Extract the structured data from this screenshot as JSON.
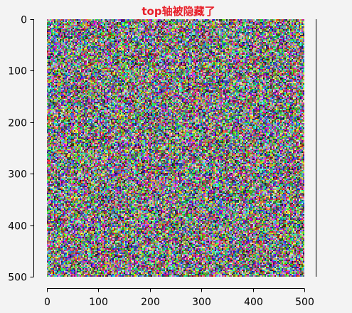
{
  "chart_data": {
    "type": "heatmap",
    "title": "top轴被隐藏了",
    "title_color": "#e8202a",
    "image": {
      "content": "random RGB noise",
      "width": 500,
      "height": 500
    },
    "xlim": [
      0,
      500
    ],
    "ylim": [
      500,
      0
    ],
    "x_ticks": [
      0,
      100,
      200,
      300,
      400,
      500
    ],
    "y_ticks": [
      0,
      100,
      200,
      300,
      400,
      500
    ],
    "x_tick_labels": [
      "0",
      "100",
      "200",
      "300",
      "400",
      "500"
    ],
    "y_tick_labels": [
      "0",
      "100",
      "200",
      "300",
      "400",
      "500"
    ],
    "visible_spines": [
      "left",
      "bottom",
      "right"
    ],
    "hidden_spines": [
      "top"
    ],
    "xlabel": "",
    "ylabel": "",
    "grid": false
  }
}
